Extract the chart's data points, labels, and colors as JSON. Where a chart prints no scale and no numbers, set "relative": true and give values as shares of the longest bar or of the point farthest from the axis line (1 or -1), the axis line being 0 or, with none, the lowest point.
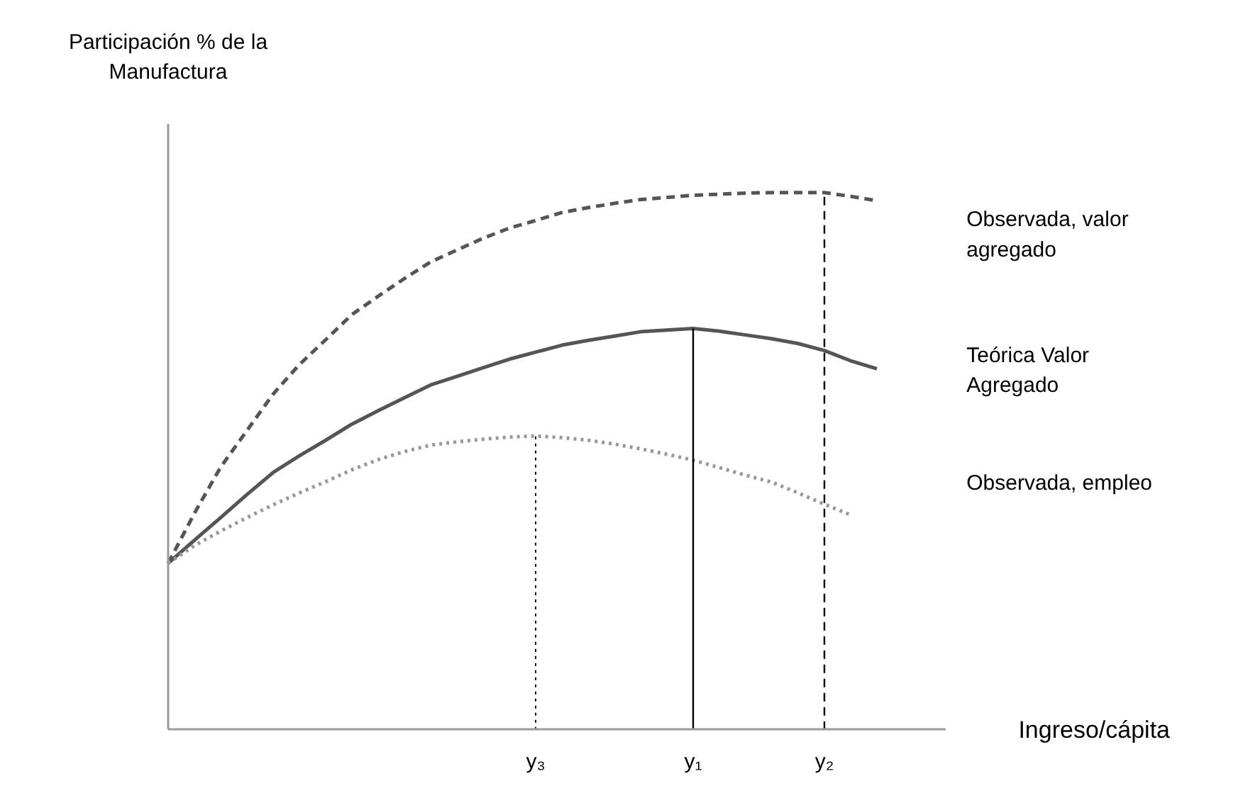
{
  "chart_data": {
    "type": "line",
    "relative": true,
    "annotations": [
      "Participación % de la\nManufactura",
      "Ingreso/cápita"
    ],
    "categories": [
      null,
      null,
      null,
      null,
      null,
      null,
      null,
      null,
      null,
      null,
      null,
      null,
      null,
      null,
      "y₃",
      null,
      null,
      null,
      null,
      null,
      "y₁",
      null,
      null,
      null,
      null,
      "y₂",
      null,
      null
    ],
    "grid": false,
    "marker": "none",
    "series": [
      {
        "name": "Observada, valor agregado",
        "color": "#555555",
        "line_style": "dashed",
        "values": [
          0.31,
          0.403,
          0.489,
          0.557,
          0.625,
          0.68,
          0.726,
          0.773,
          0.807,
          0.84,
          0.871,
          0.893,
          0.915,
          0.934,
          0.948,
          0.963,
          0.972,
          0.98,
          0.987,
          0.991,
          0.995,
          0.997,
          0.999,
          1,
          1,
          1,
          0.993,
          0.985
        ]
      },
      {
        "name": "Teórica Valor Agregado",
        "color": "#555555",
        "line_style": "solid",
        "values": [
          0.31,
          0.353,
          0.395,
          0.438,
          0.479,
          0.51,
          0.539,
          0.569,
          0.594,
          0.618,
          0.642,
          0.658,
          0.674,
          0.69,
          0.703,
          0.716,
          0.725,
          0.733,
          0.741,
          0.744,
          0.747,
          0.742,
          0.735,
          0.728,
          0.719,
          0.706,
          0.687,
          0.672
        ]
      },
      {
        "name": "Observada, empleo",
        "color": "#999999",
        "line_style": "dotted",
        "values": [
          0.31,
          0.343,
          0.37,
          0.395,
          0.419,
          0.441,
          0.462,
          0.484,
          0.503,
          0.518,
          0.53,
          0.536,
          0.541,
          0.545,
          0.547,
          0.544,
          0.539,
          0.532,
          0.523,
          0.513,
          0.502,
          0.488,
          0.474,
          0.461,
          0.441,
          0.42,
          0.4,
          null
        ]
      },
      {
        "color": "#000000",
        "line_style": "dotted",
        "x": [
          "y₃",
          "y₃"
        ],
        "values": [
          0,
          0.547
        ]
      },
      {
        "color": "#000000",
        "line_style": "solid",
        "x": [
          "y₁",
          "y₁"
        ],
        "values": [
          0,
          0.747
        ]
      },
      {
        "color": "#000000",
        "line_style": "dashed",
        "x": [
          "y₂",
          "y₂"
        ],
        "values": [
          0,
          1
        ]
      }
    ]
  }
}
